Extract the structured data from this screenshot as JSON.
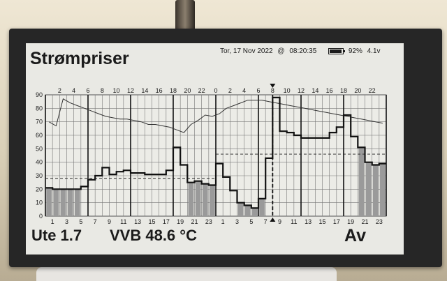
{
  "display": {
    "title": "Strømpriser",
    "date": "Tor, 17 Nov 2022",
    "at": "@",
    "time": "08:20:35",
    "battery_percent": "92%",
    "voltage": "4.1v",
    "battery_level": 0.92,
    "outdoor": "Ute 1.7",
    "water_heater": "VVB 48.6 °C",
    "mode": "Av"
  },
  "chart_data": {
    "type": "line",
    "top_ticks": [
      "2",
      "4",
      "6",
      "8",
      "10",
      "12",
      "14",
      "16",
      "18",
      "20",
      "22",
      "0",
      "2",
      "4",
      "6",
      "8",
      "10",
      "12",
      "14",
      "16",
      "18",
      "20",
      "22"
    ],
    "bottom_ticks": [
      "1",
      "3",
      "5",
      "7",
      "9",
      "11",
      "13",
      "15",
      "17",
      "19",
      "21",
      "23",
      "1",
      "3",
      "5",
      "7",
      "9",
      "11",
      "13",
      "15",
      "17",
      "19",
      "21",
      "23"
    ],
    "yticks": [
      "0",
      "10",
      "20",
      "30",
      "40",
      "50",
      "60",
      "70",
      "80",
      "90"
    ],
    "ylim": [
      0,
      90
    ],
    "hours": 48,
    "current_hour": 32,
    "price_series": {
      "values": [
        21,
        20,
        20,
        20,
        20,
        22,
        27,
        30,
        36,
        31,
        33,
        34,
        32,
        32,
        31,
        31,
        31,
        34,
        51,
        38,
        25,
        26,
        24,
        23,
        39,
        29,
        19,
        10,
        8,
        6,
        13,
        43,
        88,
        63,
        62,
        60,
        58,
        58,
        58,
        58,
        62,
        66,
        75,
        59,
        51,
        40,
        38,
        39
      ]
    },
    "temperature_series": {
      "values": [
        70,
        67,
        87,
        84,
        82,
        80,
        78,
        76,
        74,
        73,
        72,
        72,
        71,
        70,
        68,
        68,
        67,
        66,
        64,
        62,
        68,
        71,
        75,
        74,
        76,
        80,
        82,
        84,
        86,
        86,
        86,
        85,
        84,
        83,
        82,
        81,
        80,
        79,
        78,
        77,
        76,
        75,
        74,
        73,
        72,
        71,
        70,
        69
      ]
    },
    "active_hours": [
      0,
      1,
      2,
      3,
      4,
      20,
      21,
      22,
      23,
      27,
      28,
      29,
      30,
      44,
      45,
      46,
      47
    ],
    "reference_lines": [
      {
        "y": 46,
        "from_hour": 24,
        "to_hour": 48
      },
      {
        "y": 28,
        "from_hour": 0,
        "to_hour": 24
      }
    ]
  }
}
